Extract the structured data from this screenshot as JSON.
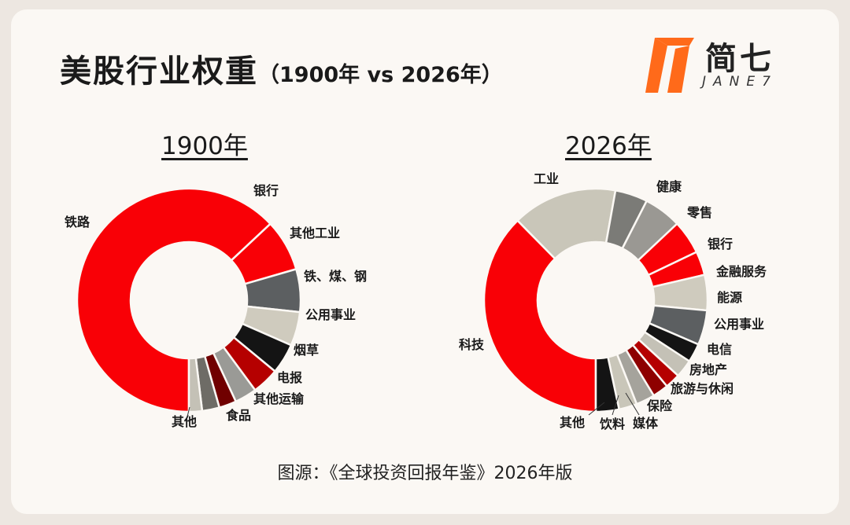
{
  "title": {
    "main": "美股行业权重",
    "sub": "（1900年 vs 2026年）"
  },
  "logo": {
    "cn": "简七",
    "en": "JANE7",
    "accent": "#ff6a1a"
  },
  "source": "图源：《全球投资回报年鉴》2026年版",
  "chart_data": [
    {
      "type": "pie",
      "donut": true,
      "title": "1900年",
      "unit": "%",
      "categories": [
        "铁路",
        "银行",
        "其他工业",
        "铁、煤、钢",
        "公用事业",
        "烟草",
        "电报",
        "其他运输",
        "食品",
        "其他"
      ],
      "values": [
        63.0,
        7.5,
        6.2,
        4.9,
        4.4,
        3.9,
        3.2,
        2.5,
        2.5,
        1.9
      ],
      "colors": [
        "#f90006",
        "#f90006",
        "#5c5f61",
        "#cfcbbe",
        "#141414",
        "#b50000",
        "#9a9a96",
        "#700000",
        "#6e6c66",
        "#c4c1b6"
      ]
    },
    {
      "type": "pie",
      "donut": true,
      "title": "2026年",
      "unit": "%",
      "categories": [
        "科技",
        "工业",
        "健康",
        "零售",
        "银行",
        "金融服务",
        "能源",
        "公用事业",
        "电信",
        "房地产",
        "旅游与休闲",
        "保险",
        "媒体",
        "饮料",
        "其他"
      ],
      "values": [
        36.0,
        14.5,
        4.5,
        5.2,
        4.7,
        3.3,
        4.9,
        4.8,
        2.6,
        2.5,
        2.1,
        2.2,
        2.6,
        2.5,
        3.2
      ],
      "colors": [
        "#f90006",
        "#c9c6b9",
        "#7b7b77",
        "#9a9893",
        "#f90006",
        "#f90006",
        "#cfcbbe",
        "#5c5f61",
        "#141414",
        "#c4c1b6",
        "#b50000",
        "#8e0000",
        "#a5a39c",
        "#c9c6b9",
        "#141414"
      ]
    }
  ]
}
